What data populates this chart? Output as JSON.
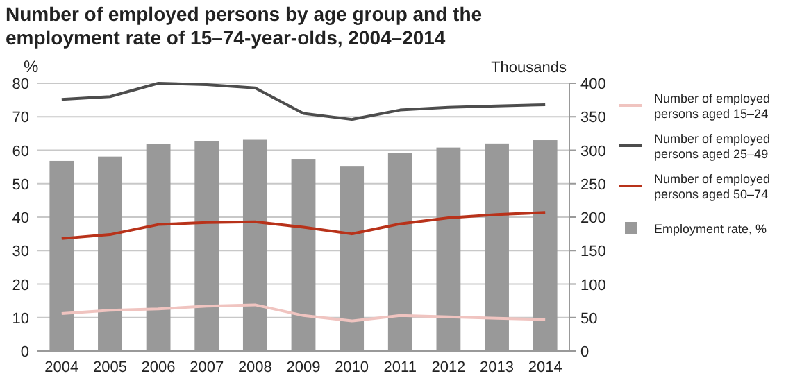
{
  "chart_data": {
    "type": "bar",
    "title": "Number of employed persons by age group and the employment rate of 15–74-year-olds, 2004–2014",
    "ylabel": "%",
    "y2label": "Thousands",
    "categories": [
      "2004",
      "2005",
      "2006",
      "2007",
      "2008",
      "2009",
      "2010",
      "2011",
      "2012",
      "2013",
      "2014"
    ],
    "series": [
      {
        "name": "Number of employed persons aged 15–24",
        "type": "line",
        "axis": "y2",
        "color": "#f0c4c0",
        "values": [
          56,
          61,
          63,
          67,
          69,
          53,
          45,
          53,
          51,
          49,
          47
        ]
      },
      {
        "name": "Number of employed persons aged 25–49",
        "type": "line",
        "axis": "y2",
        "color": "#4d4d4d",
        "values": [
          376,
          380,
          400,
          398,
          393,
          355,
          346,
          360,
          364,
          366,
          368
        ]
      },
      {
        "name": "Number of employed persons aged 50–74",
        "type": "line",
        "axis": "y2",
        "color": "#b8321a",
        "values": [
          168,
          174,
          189,
          192,
          193,
          185,
          175,
          190,
          199,
          204,
          207
        ]
      },
      {
        "name": "Employment rate, %",
        "color": "#999999",
        "values": [
          56.8,
          58.1,
          61.8,
          62.8,
          63.1,
          57.4,
          55.1,
          59.1,
          60.8,
          62.0,
          63.0
        ]
      }
    ],
    "ylim": [
      0,
      80
    ],
    "yticks": [
      0,
      10,
      20,
      30,
      40,
      50,
      60,
      70,
      80
    ],
    "y2lim": [
      0,
      400
    ],
    "y2ticks": [
      0,
      50,
      100,
      150,
      200,
      250,
      300,
      350,
      400
    ],
    "grid": "y",
    "legend": "right",
    "marker": "none",
    "line_style": "solid"
  }
}
